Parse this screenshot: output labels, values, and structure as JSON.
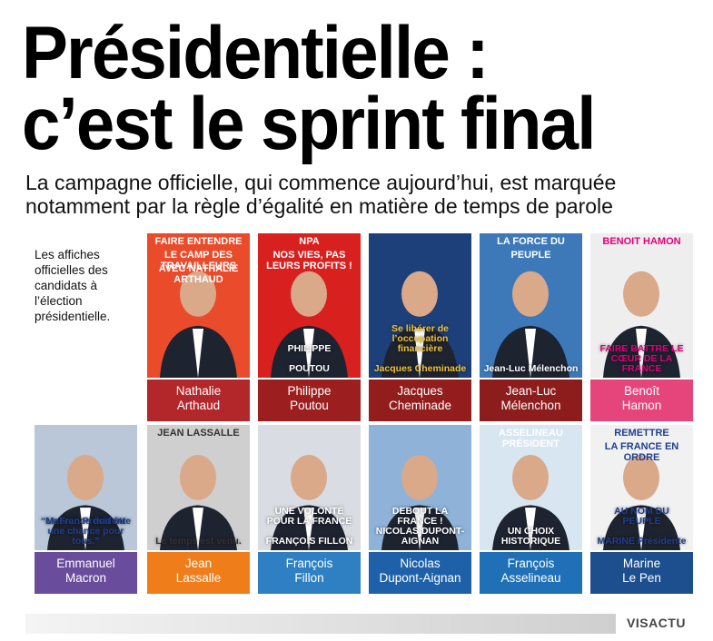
{
  "header": {
    "title_lines": [
      "Présidentielle :",
      "c’est le sprint final"
    ],
    "subtitle_lines": [
      "La campagne officielle, qui commence aujourd’hui, est marquée",
      "notamment par la règle d’égalité en matière de temps de parole"
    ]
  },
  "caption": "Les affiches officielles des candidats à l’élection présidentielle.",
  "candidates": [
    {
      "first": "Nathalie",
      "last": "Arthaud",
      "poster_top": [
        "FAIRE ENTENDRE",
        "LE CAMP DES TRAVAILLEURS",
        "AVEC NATHALIE ARTHAUD"
      ],
      "poster_bottom": []
    },
    {
      "first": "Philippe",
      "last": "Poutou",
      "poster_top": [
        "NPA",
        "NOS VIES, PAS LEURS PROFITS !"
      ],
      "poster_bottom": [
        "PHILIPPE",
        "POUTOU"
      ]
    },
    {
      "first": "Jacques",
      "last": "Cheminade",
      "poster_top": [],
      "poster_bottom": [
        "Se libérer de l’occupation financière",
        "Jacques Cheminade"
      ]
    },
    {
      "first": "Jean-Luc",
      "last": "Mélenchon",
      "poster_top": [
        "LA FORCE DU",
        "PEUPLE"
      ],
      "poster_bottom": [
        "Jean-Luc Mélenchon"
      ]
    },
    {
      "first": "Benoît",
      "last": "Hamon",
      "poster_top": [
        "BENOIT HAMON"
      ],
      "poster_bottom": [
        "FAIRE BATTRE LE CŒUR DE LA FRANCE"
      ]
    },
    {
      "first": "Emmanuel",
      "last": "Macron",
      "poster_top": [],
      "poster_bottom": [
        "Macron Président",
        "“La France doit être une chance pour tous.”"
      ]
    },
    {
      "first": "Jean",
      "last": "Lassalle",
      "poster_top": [
        "JEAN LASSALLE"
      ],
      "poster_bottom": [
        "Le temps est venu."
      ]
    },
    {
      "first": "François",
      "last": "Fillon",
      "poster_top": [],
      "poster_bottom": [
        "UNE VOLONTÉ POUR LA FRANCE",
        "FRANÇOIS FILLON"
      ]
    },
    {
      "first": "Nicolas",
      "last": "Dupont-Aignan",
      "poster_top": [],
      "poster_bottom": [
        "DEBOUT LA FRANCE !",
        "NICOLAS DUPONT-AIGNAN"
      ]
    },
    {
      "first": "François",
      "last": "Asselineau",
      "poster_top": [
        "ASSELINEAU PRÉSIDENT"
      ],
      "poster_bottom": [
        "UN CHOIX HISTORIQUE"
      ]
    },
    {
      "first": "Marine",
      "last": "Le Pen",
      "poster_top": [
        "REMETTRE",
        "LA FRANCE EN ORDRE"
      ],
      "poster_bottom": [
        "AU NOM DU PEUPLE",
        "MARINE Présidente"
      ]
    }
  ],
  "footer": {
    "logo": "VISACTU"
  }
}
